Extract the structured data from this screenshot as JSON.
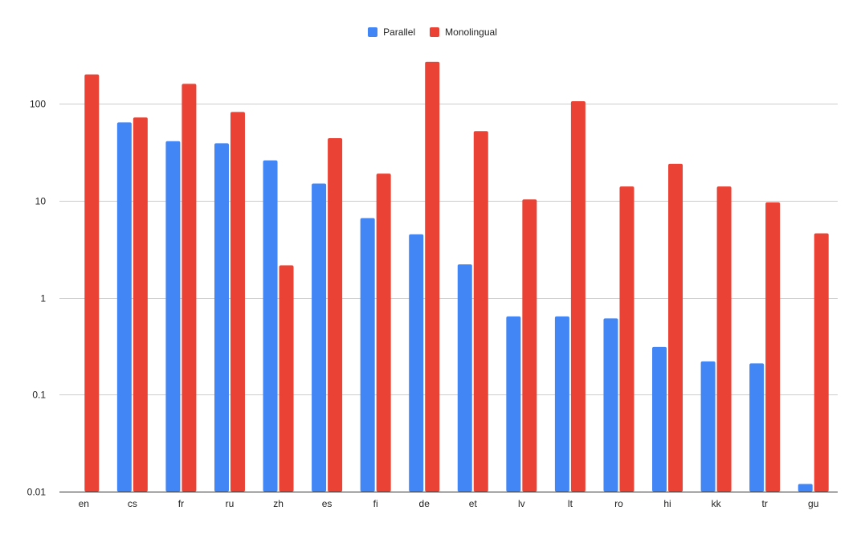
{
  "chart_data": {
    "type": "bar",
    "yscale": "log",
    "ylim": [
      0.01,
      300
    ],
    "yticks": [
      0.01,
      0.1,
      1,
      10,
      100
    ],
    "ytick_labels": [
      "0.01",
      "0.1",
      "1",
      "10",
      "100"
    ],
    "grid": true,
    "legend_position": "top-center",
    "categories": [
      "en",
      "cs",
      "fr",
      "ru",
      "zh",
      "es",
      "fi",
      "de",
      "et",
      "lv",
      "lt",
      "ro",
      "hi",
      "kk",
      "tr",
      "gu"
    ],
    "series": [
      {
        "name": "Parallel",
        "color": "#4285F4",
        "values": [
          null,
          64,
          41,
          39,
          26,
          15,
          6.6,
          4.5,
          2.2,
          0.64,
          0.64,
          0.61,
          0.31,
          0.22,
          0.21,
          0.012
        ]
      },
      {
        "name": "Monolingual",
        "color": "#EA4335",
        "values": [
          200,
          72,
          160,
          82,
          2.15,
          44,
          19,
          270,
          52,
          10.3,
          106,
          14,
          24,
          14,
          9.6,
          4.6
        ]
      }
    ]
  }
}
